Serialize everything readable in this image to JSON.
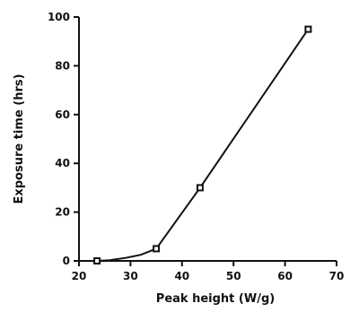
{
  "chart_data": {
    "type": "line",
    "title": "",
    "xlabel": "Peak height (W/g)",
    "ylabel": "Exposure time (hrs)",
    "xlim": [
      20,
      70
    ],
    "ylim": [
      0,
      100
    ],
    "xticks": [
      20,
      30,
      40,
      50,
      60,
      70
    ],
    "yticks": [
      0,
      20,
      40,
      60,
      80,
      100
    ],
    "grid": false,
    "legend": "none",
    "series": [
      {
        "points": [
          {
            "x": 23.5,
            "y": 0
          },
          {
            "x": 35.0,
            "y": 5
          },
          {
            "x": 43.5,
            "y": 30
          },
          {
            "x": 64.5,
            "y": 95
          }
        ],
        "curve": [
          {
            "x": 23.5,
            "y": 0
          },
          {
            "x": 26.0,
            "y": 0.3
          },
          {
            "x": 29.0,
            "y": 1.2
          },
          {
            "x": 32.0,
            "y": 2.5
          },
          {
            "x": 35.0,
            "y": 5
          },
          {
            "x": 43.5,
            "y": 30
          },
          {
            "x": 64.5,
            "y": 95
          }
        ],
        "marker": "square",
        "color": "#111111"
      }
    ]
  }
}
